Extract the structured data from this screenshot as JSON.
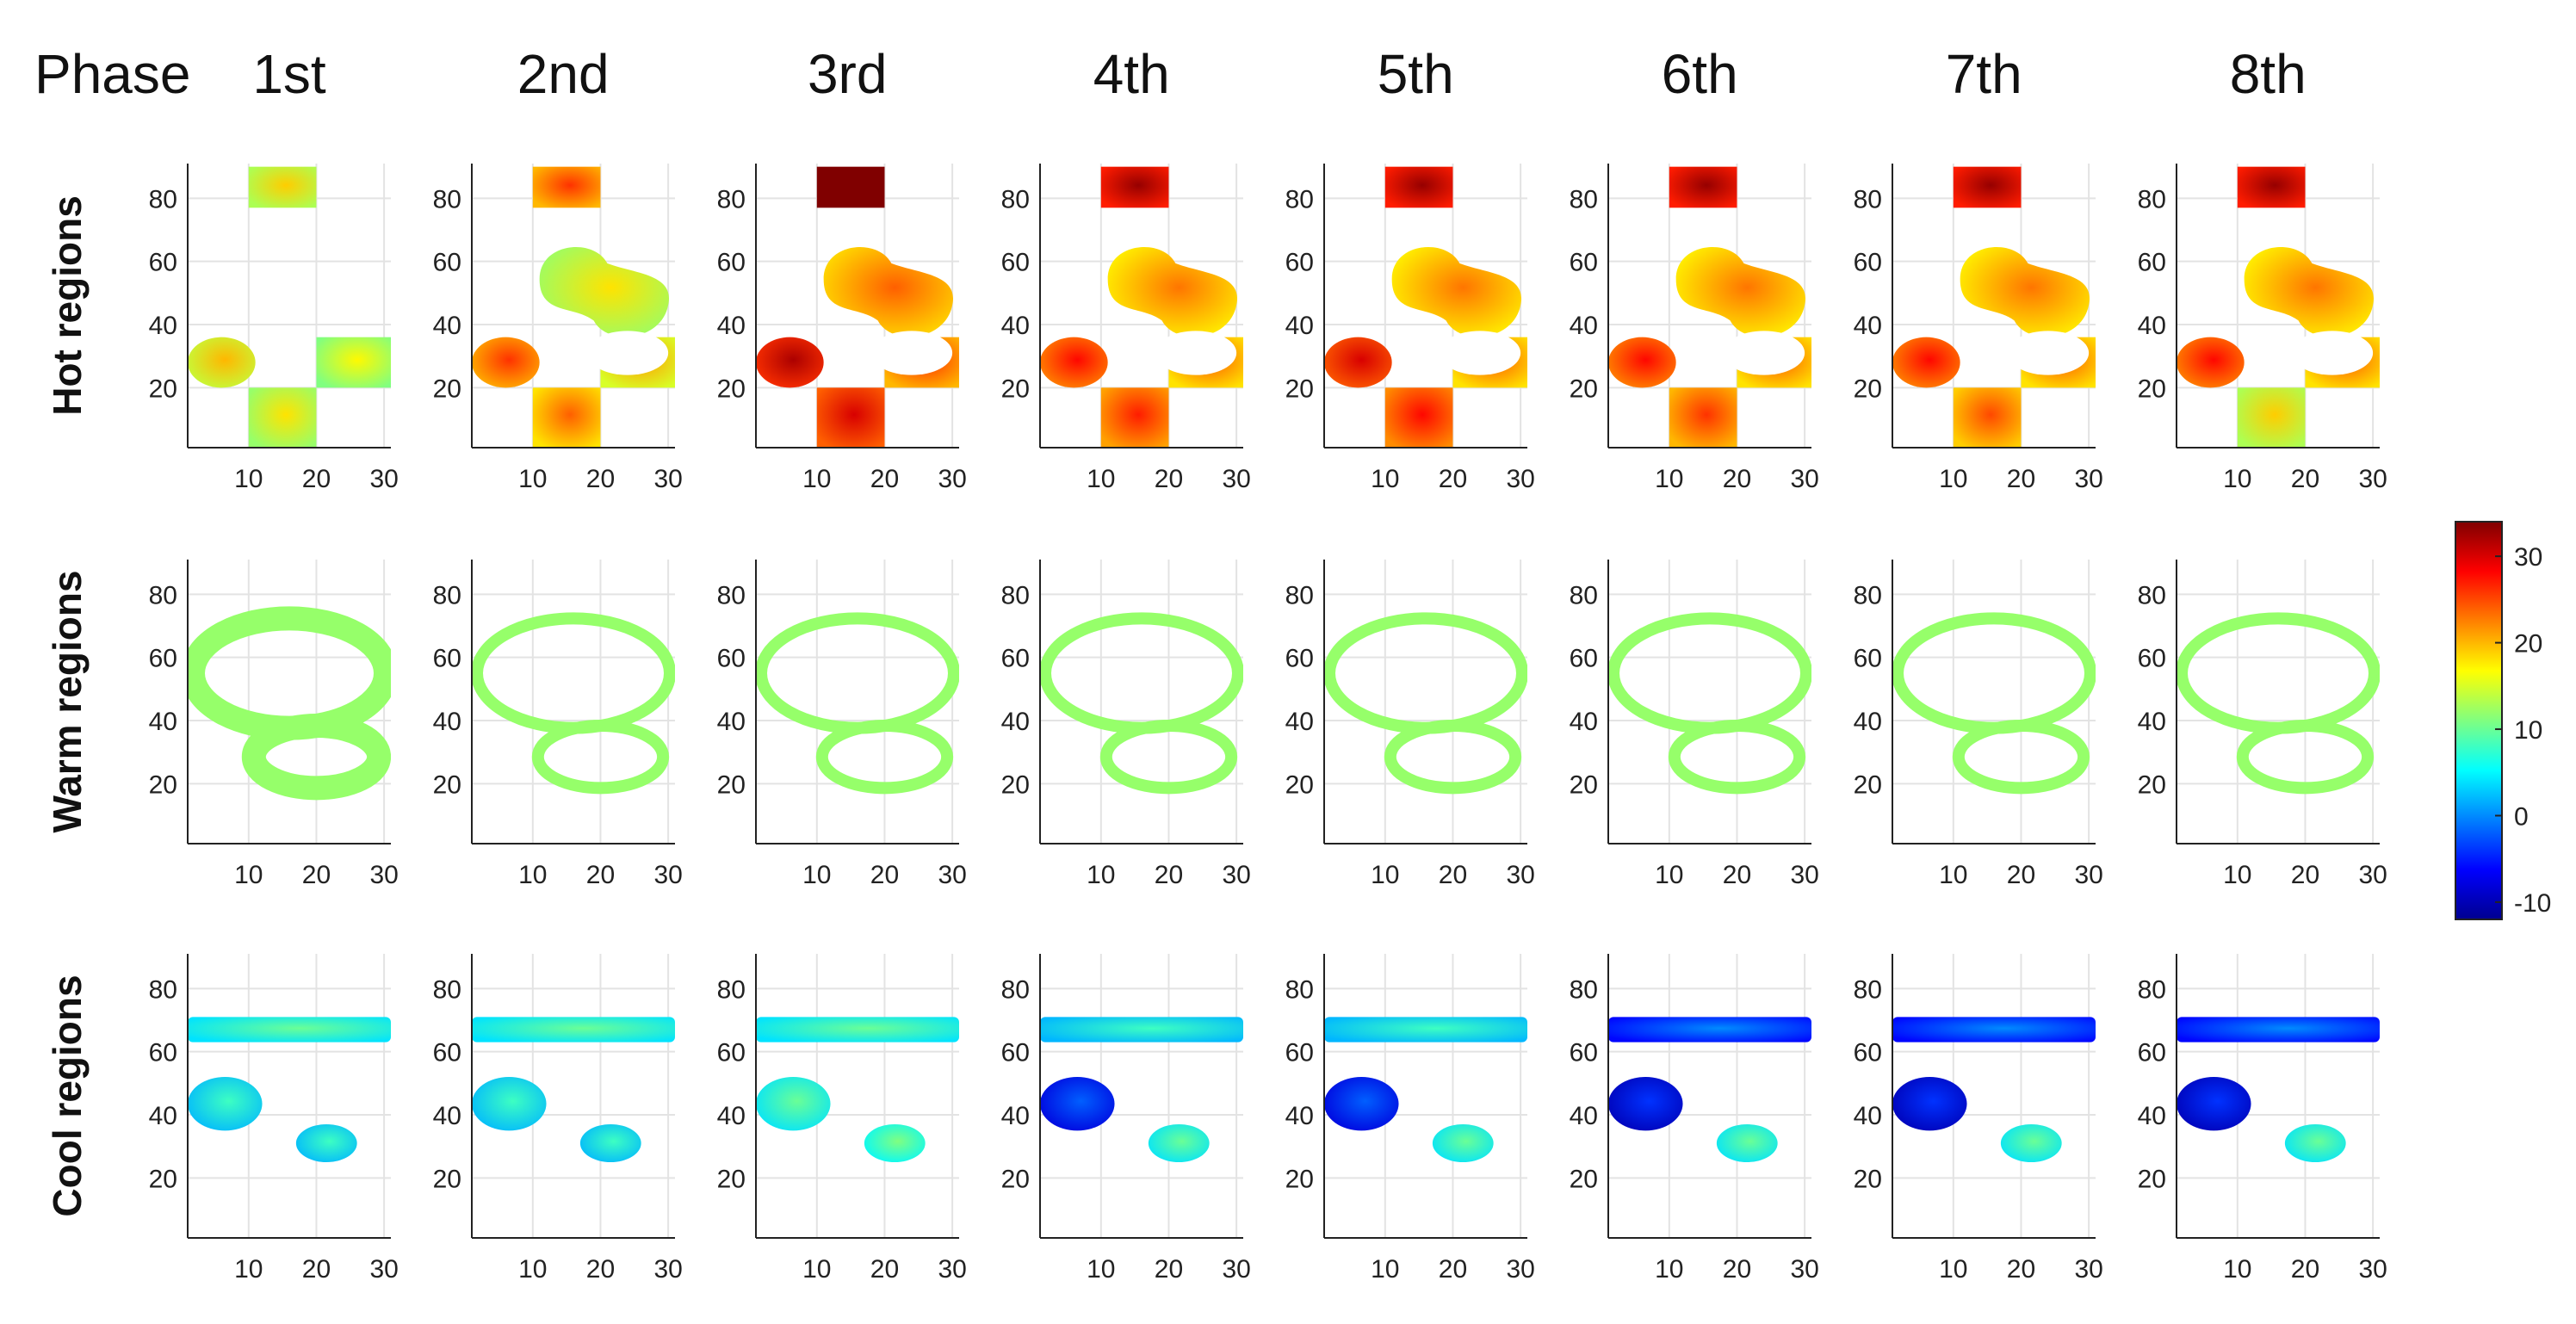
{
  "chart_data": {
    "type": "heatmap",
    "phase_label": "Phase",
    "phases": [
      "1st",
      "2nd",
      "3rd",
      "4th",
      "5th",
      "6th",
      "7th",
      "8th"
    ],
    "rows": [
      {
        "key": "hot",
        "label": "Hot regions"
      },
      {
        "key": "warm",
        "label": "Warm regions"
      },
      {
        "key": "cool",
        "label": "Cool regions"
      }
    ],
    "xlim": [
      1,
      31
    ],
    "ylim": [
      1,
      91
    ],
    "x_ticks": [
      10,
      20,
      30
    ],
    "y_ticks": [
      20,
      40,
      60,
      80
    ],
    "grid": true,
    "colorbar": {
      "range": [
        -12,
        34
      ],
      "ticks": [
        -10,
        0,
        10,
        20,
        30
      ],
      "colormap": "jet",
      "placement": "right"
    },
    "colormap_stops": [
      "#00008f",
      "#0000ff",
      "#0080ff",
      "#00ffff",
      "#80ff80",
      "#ffff00",
      "#ff8000",
      "#ff0000",
      "#800000"
    ],
    "regions": {
      "hot": [
        {
          "name": "top-box",
          "x": [
            10,
            20
          ],
          "y": [
            77,
            90
          ],
          "intensity_by_phase": [
            13,
            20,
            34,
            27,
            27,
            27,
            27,
            27
          ]
        },
        {
          "name": "left-blob",
          "x": [
            1,
            11
          ],
          "y": [
            20,
            36
          ],
          "intensity_by_phase": [
            14,
            20,
            26,
            22,
            24,
            22,
            22,
            22
          ]
        },
        {
          "name": "right-strip",
          "x": [
            20,
            31
          ],
          "y": [
            20,
            36
          ],
          "intensity_by_phase": [
            11,
            15,
            20,
            18,
            18,
            18,
            18,
            18
          ]
        },
        {
          "name": "upper-blob",
          "x": [
            10,
            30
          ],
          "y": [
            33,
            66
          ],
          "intensity_by_phase": [
            0,
            12,
            18,
            17,
            17,
            17,
            17,
            17
          ]
        },
        {
          "name": "bottom-box",
          "x": [
            10,
            20
          ],
          "y": [
            1,
            20
          ],
          "intensity_by_phase": [
            12,
            18,
            24,
            21,
            22,
            20,
            19,
            13
          ]
        }
      ],
      "warm": [
        {
          "name": "upper-ring",
          "x": [
            1,
            31
          ],
          "y": [
            36,
            74
          ],
          "intensity_by_phase": [
            12,
            12,
            12,
            12,
            12,
            12,
            12,
            12
          ]
        },
        {
          "name": "lower-ring",
          "x": [
            10,
            30
          ],
          "y": [
            17,
            40
          ],
          "intensity_by_phase": [
            12,
            12,
            12,
            12,
            12,
            12,
            12,
            12
          ]
        }
      ],
      "cool": [
        {
          "name": "top-band",
          "x": [
            1,
            31
          ],
          "y": [
            63,
            71
          ],
          "intensity_by_phase": [
            4,
            4,
            4,
            2,
            2,
            -6,
            -6,
            -6
          ]
        },
        {
          "name": "left-lobe",
          "x": [
            1,
            12
          ],
          "y": [
            35,
            52
          ],
          "intensity_by_phase": [
            2,
            2,
            4,
            -8,
            -8,
            -10,
            -10,
            -10
          ]
        },
        {
          "name": "lower-blob",
          "x": [
            17,
            26
          ],
          "y": [
            25,
            37
          ],
          "intensity_by_phase": [
            2,
            2,
            5,
            4,
            4,
            4,
            4,
            4
          ]
        }
      ]
    }
  }
}
